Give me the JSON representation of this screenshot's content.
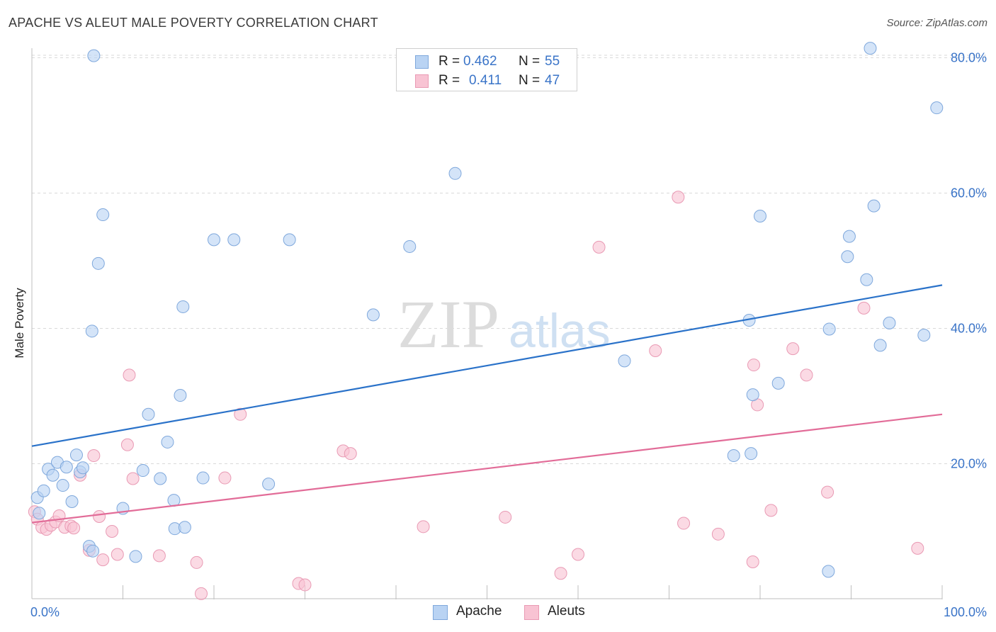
{
  "title": "APACHE VS ALEUT MALE POVERTY CORRELATION CHART",
  "source": "Source: ZipAtlas.com",
  "watermark": {
    "zip": "ZIP",
    "atlas": "atlas"
  },
  "legend": {
    "apache": {
      "r_label": "R =",
      "r_value": "0.462",
      "n_label": "N =",
      "n_value": "55"
    },
    "aleuts": {
      "r_label": "R =",
      "r_value": "0.411",
      "n_label": "N =",
      "n_value": "47"
    }
  },
  "bottom_legend": {
    "apache": "Apache",
    "aleuts": "Aleuts"
  },
  "chart_data": {
    "type": "scatter",
    "xlabel": "",
    "ylabel": "Male Poverty",
    "xlim": [
      0,
      100
    ],
    "ylim": [
      0,
      80
    ],
    "x_tick_labels": [
      {
        "value": 0,
        "label": "0.0%"
      },
      {
        "value": 100,
        "label": "100.0%"
      }
    ],
    "y_tick_labels": [
      {
        "value": 20,
        "label": "20.0%"
      },
      {
        "value": 40,
        "label": "40.0%"
      },
      {
        "value": 60,
        "label": "60.0%"
      },
      {
        "value": 80,
        "label": "80.0%"
      }
    ],
    "grid": true,
    "legend_position": "top-center",
    "colors": {
      "apache_fill": "#b9d3f3",
      "apache_stroke": "#7fa8dc",
      "apache_line": "#2a72c9",
      "aleuts_fill": "#f8c3d3",
      "aleuts_stroke": "#e99ab4",
      "aleuts_line": "#e26c98",
      "axis_text": "#3a74c8"
    },
    "series": [
      {
        "name": "Apache",
        "trend": {
          "x": [
            0,
            100
          ],
          "y": [
            22.6,
            46.4
          ]
        },
        "points": [
          [
            0.6,
            15.0
          ],
          [
            0.8,
            12.7
          ],
          [
            1.3,
            16.0
          ],
          [
            1.8,
            19.2
          ],
          [
            2.3,
            18.3
          ],
          [
            2.8,
            20.2
          ],
          [
            3.4,
            16.8
          ],
          [
            3.8,
            19.5
          ],
          [
            4.4,
            14.4
          ],
          [
            4.9,
            21.3
          ],
          [
            5.3,
            18.8
          ],
          [
            5.6,
            19.4
          ],
          [
            6.3,
            7.8
          ],
          [
            6.6,
            39.6
          ],
          [
            6.7,
            7.1
          ],
          [
            6.8,
            80.3
          ],
          [
            7.3,
            49.6
          ],
          [
            7.8,
            56.8
          ],
          [
            10.0,
            13.4
          ],
          [
            11.4,
            6.3
          ],
          [
            12.2,
            19.0
          ],
          [
            12.8,
            27.3
          ],
          [
            14.1,
            17.8
          ],
          [
            14.9,
            23.2
          ],
          [
            15.6,
            14.6
          ],
          [
            15.7,
            10.4
          ],
          [
            16.3,
            30.1
          ],
          [
            16.6,
            43.2
          ],
          [
            16.8,
            10.6
          ],
          [
            18.8,
            17.9
          ],
          [
            20.0,
            53.1
          ],
          [
            22.2,
            53.1
          ],
          [
            26.0,
            17.0
          ],
          [
            28.3,
            53.1
          ],
          [
            37.5,
            42.0
          ],
          [
            41.5,
            52.1
          ],
          [
            46.5,
            62.9
          ],
          [
            65.1,
            35.2
          ],
          [
            77.1,
            21.2
          ],
          [
            79.0,
            21.5
          ],
          [
            78.8,
            41.2
          ],
          [
            79.2,
            30.2
          ],
          [
            80.0,
            56.6
          ],
          [
            82.0,
            31.9
          ],
          [
            87.6,
            39.9
          ],
          [
            87.5,
            4.1
          ],
          [
            89.6,
            50.6
          ],
          [
            89.8,
            53.6
          ],
          [
            91.7,
            47.2
          ],
          [
            92.1,
            81.4
          ],
          [
            92.5,
            58.1
          ],
          [
            93.2,
            37.5
          ],
          [
            94.2,
            40.8
          ],
          [
            98.0,
            39.0
          ],
          [
            99.4,
            72.6
          ]
        ]
      },
      {
        "name": "Aleuts",
        "trend": {
          "x": [
            0,
            100
          ],
          "y": [
            11.3,
            27.3
          ]
        },
        "points": [
          [
            0.3,
            12.9
          ],
          [
            0.6,
            11.8
          ],
          [
            1.1,
            10.6
          ],
          [
            1.6,
            10.3
          ],
          [
            2.1,
            10.9
          ],
          [
            2.6,
            11.4
          ],
          [
            3.0,
            12.3
          ],
          [
            3.6,
            10.6
          ],
          [
            4.3,
            10.8
          ],
          [
            4.6,
            10.5
          ],
          [
            5.3,
            18.3
          ],
          [
            6.3,
            7.2
          ],
          [
            6.8,
            21.2
          ],
          [
            7.4,
            12.2
          ],
          [
            7.8,
            5.8
          ],
          [
            8.8,
            10.0
          ],
          [
            9.4,
            6.6
          ],
          [
            10.5,
            22.8
          ],
          [
            10.7,
            33.1
          ],
          [
            11.1,
            17.8
          ],
          [
            14.0,
            6.4
          ],
          [
            18.1,
            5.4
          ],
          [
            18.6,
            0.8
          ],
          [
            21.2,
            17.9
          ],
          [
            22.9,
            27.3
          ],
          [
            29.3,
            2.3
          ],
          [
            30.0,
            2.1
          ],
          [
            34.2,
            21.9
          ],
          [
            35.0,
            21.5
          ],
          [
            43.0,
            10.7
          ],
          [
            52.0,
            12.1
          ],
          [
            58.1,
            3.8
          ],
          [
            60.0,
            6.6
          ],
          [
            62.3,
            52.0
          ],
          [
            68.5,
            36.7
          ],
          [
            71.0,
            59.4
          ],
          [
            71.6,
            11.2
          ],
          [
            75.4,
            9.6
          ],
          [
            79.2,
            5.5
          ],
          [
            79.7,
            28.7
          ],
          [
            79.3,
            34.6
          ],
          [
            81.2,
            13.1
          ],
          [
            83.6,
            37.0
          ],
          [
            85.1,
            33.1
          ],
          [
            87.4,
            15.8
          ],
          [
            91.4,
            43.0
          ],
          [
            97.3,
            7.5
          ]
        ]
      }
    ]
  }
}
